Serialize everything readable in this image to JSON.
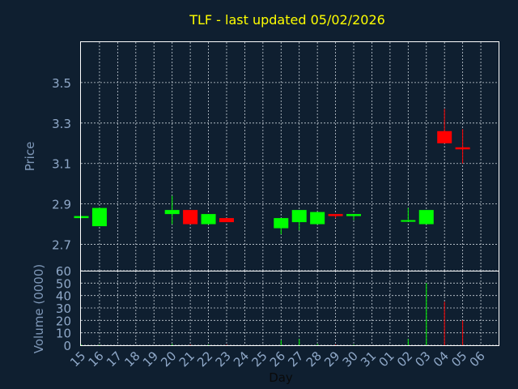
{
  "chart_data": {
    "type": "candlestick",
    "title": "TLF - last updated 05/02/2026",
    "xlabel": "Day",
    "price_panel": {
      "ylabel": "Price",
      "ylim": [
        2.57,
        3.7
      ],
      "yticks": [
        "2.7",
        "2.9",
        "3.1",
        "3.3",
        "3.5"
      ],
      "grid": true
    },
    "volume_panel": {
      "ylabel": "Volume (0000)",
      "ylim": [
        0,
        60
      ],
      "yticks": [
        "0",
        "10",
        "20",
        "30",
        "40",
        "50",
        "60"
      ],
      "grid": true
    },
    "categories": [
      "15",
      "16",
      "17",
      "18",
      "19",
      "20",
      "21",
      "22",
      "23",
      "24",
      "25",
      "26",
      "27",
      "28",
      "29",
      "30",
      "31",
      "01",
      "02",
      "03",
      "04",
      "05",
      "06"
    ],
    "candles": [
      {
        "day": "15",
        "open": 2.83,
        "high": 2.84,
        "low": 2.83,
        "close": 2.84,
        "volume": 0.5
      },
      {
        "day": "16",
        "open": 2.79,
        "high": 2.88,
        "low": 2.79,
        "close": 2.88,
        "volume": 0.5
      },
      {
        "day": "20",
        "open": 2.85,
        "high": 2.94,
        "low": 2.8,
        "close": 2.87,
        "volume": 1
      },
      {
        "day": "21",
        "open": 2.87,
        "high": 2.87,
        "low": 2.8,
        "close": 2.8,
        "volume": 0.5
      },
      {
        "day": "22",
        "open": 2.8,
        "high": 2.85,
        "low": 2.8,
        "close": 2.85,
        "volume": 0.5
      },
      {
        "day": "23",
        "open": 2.83,
        "high": 2.83,
        "low": 2.81,
        "close": 2.81,
        "volume": 0.5
      },
      {
        "day": "26",
        "open": 2.78,
        "high": 2.83,
        "low": 2.75,
        "close": 2.83,
        "volume": 4
      },
      {
        "day": "27",
        "open": 2.81,
        "high": 2.87,
        "low": 2.77,
        "close": 2.87,
        "volume": 5
      },
      {
        "day": "28",
        "open": 2.8,
        "high": 2.86,
        "low": 2.8,
        "close": 2.86,
        "volume": 1
      },
      {
        "day": "29",
        "open": 2.85,
        "high": 2.85,
        "low": 2.83,
        "close": 2.84,
        "volume": 0.5
      },
      {
        "day": "30",
        "open": 2.84,
        "high": 2.85,
        "low": 2.82,
        "close": 2.85,
        "volume": 0.5
      },
      {
        "day": "02",
        "open": 2.82,
        "high": 2.88,
        "low": 2.82,
        "close": 2.82,
        "volume": 5
      },
      {
        "day": "03",
        "open": 2.8,
        "high": 2.87,
        "low": 2.8,
        "close": 2.87,
        "volume": 50
      },
      {
        "day": "04",
        "open": 3.26,
        "high": 3.37,
        "low": 3.2,
        "close": 3.2,
        "volume": 35
      },
      {
        "day": "05",
        "open": 3.18,
        "high": 3.27,
        "low": 3.1,
        "close": 3.17,
        "volume": 20
      }
    ],
    "colors": {
      "up": "#00ff00",
      "down": "#ff0000",
      "background": "#0f1f30",
      "title": "#ffff00",
      "grid": "#c8d0d8"
    }
  }
}
